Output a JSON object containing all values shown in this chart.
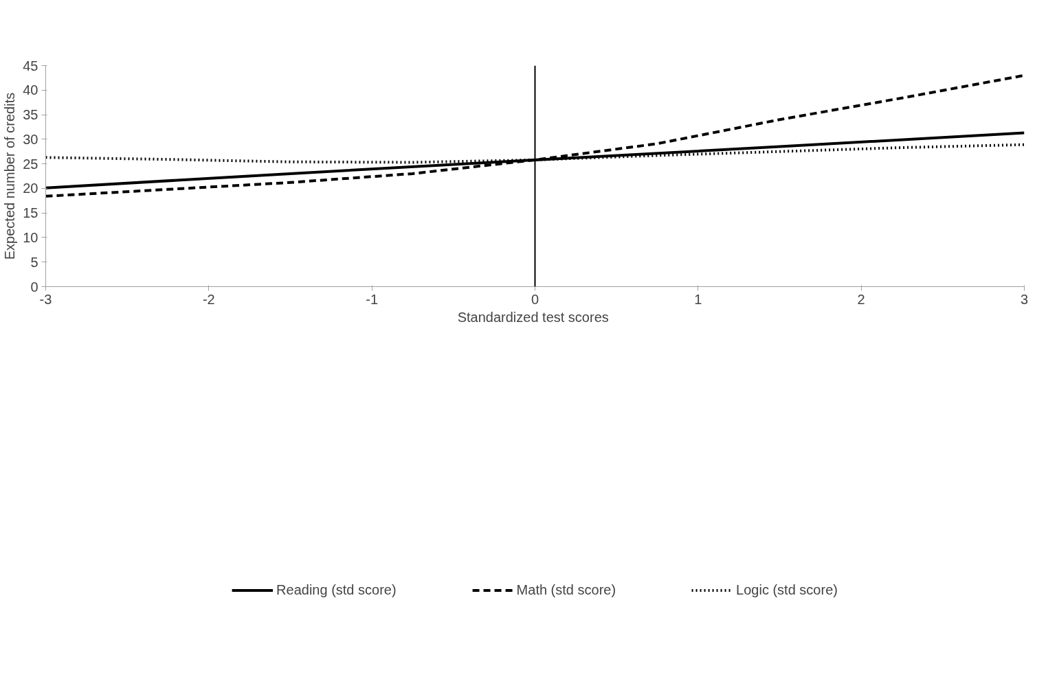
{
  "chart_data": {
    "type": "line",
    "xlabel": "Standardized  test scores",
    "ylabel": "Expected number of credits",
    "xlim": [
      -3,
      3
    ],
    "xticks": [
      -3,
      -2,
      -1,
      0,
      1,
      2,
      3
    ],
    "ylim": [
      0,
      45
    ],
    "yticks": [
      0,
      5,
      10,
      15,
      20,
      25,
      30,
      35,
      40,
      45
    ],
    "grid": false,
    "legend": "bottom",
    "marker": "none",
    "ref_lines": [
      {
        "axis": "x",
        "value": 0,
        "color": "#000000"
      }
    ],
    "series": [
      {
        "name": "Reading (std score)",
        "color": "#000000",
        "line_style": "solid",
        "x": [
          -3,
          -1.5,
          0,
          1.5,
          3
        ],
        "values": [
          20.1,
          23.0,
          25.8,
          28.5,
          31.3
        ]
      },
      {
        "name": "Math (std score)",
        "color": "#000000",
        "line_style": "dashed",
        "x": [
          -3,
          -2.25,
          -1.5,
          -0.75,
          0,
          0.75,
          1.5,
          2.25,
          3
        ],
        "values": [
          18.4,
          19.8,
          21.2,
          23.0,
          25.8,
          29.1,
          34.0,
          38.4,
          43.0
        ]
      },
      {
        "name": "Logic (std score)",
        "color": "#000000",
        "line_style": "dotted",
        "x": [
          -3,
          -2.25,
          -1.5,
          -0.75,
          0,
          0.75,
          1.5,
          2.25,
          3
        ],
        "values": [
          26.3,
          25.9,
          25.4,
          25.3,
          25.8,
          26.7,
          27.5,
          28.3,
          28.9
        ]
      }
    ]
  }
}
